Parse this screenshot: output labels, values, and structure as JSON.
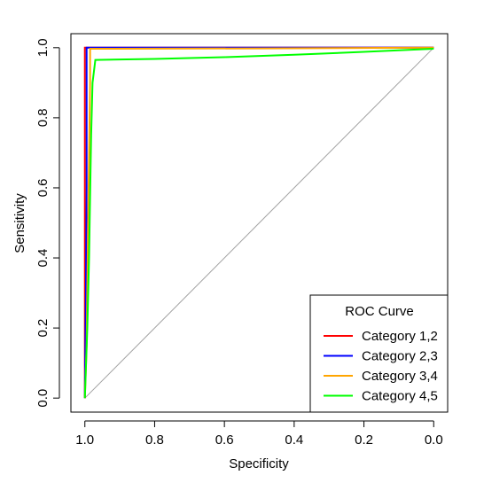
{
  "chart_data": {
    "type": "line",
    "title": "",
    "xlabel": "Specificity",
    "ylabel": "Sensitivity",
    "xlim": [
      1.04,
      -0.04
    ],
    "ylim": [
      -0.04,
      1.04
    ],
    "x_reversed": true,
    "x_ticks": [
      1.0,
      0.8,
      0.6,
      0.4,
      0.2,
      0.0
    ],
    "x_tick_labels": [
      "1.0",
      "0.8",
      "0.6",
      "0.4",
      "0.2",
      "0.0"
    ],
    "y_ticks": [
      0.0,
      0.2,
      0.4,
      0.6,
      0.8,
      1.0
    ],
    "y_tick_labels": [
      "0.0",
      "0.2",
      "0.4",
      "0.6",
      "0.8",
      "1.0"
    ],
    "grid": false,
    "diagonal_reference": true,
    "legend": {
      "title": "ROC Curve",
      "position": "bottom-right"
    },
    "series": [
      {
        "name": "Category 1,2",
        "color": "#ff0000",
        "x": [
          1.0,
          1.0,
          0.0
        ],
        "y": [
          0.0,
          1.0,
          1.0
        ]
      },
      {
        "name": "Category 2,3",
        "color": "#0000ff",
        "x": [
          1.0,
          0.997,
          0.995,
          0.995,
          0.0
        ],
        "y": [
          0.0,
          0.3,
          0.6,
          1.0,
          1.0
        ]
      },
      {
        "name": "Category 3,4",
        "color": "#ffa500",
        "x": [
          1.0,
          0.995,
          0.99,
          0.985,
          0.985,
          0.5,
          0.0
        ],
        "y": [
          0.0,
          0.15,
          0.55,
          0.9,
          0.997,
          0.998,
          1.0
        ]
      },
      {
        "name": "Category 4,5",
        "color": "#00ff00",
        "x": [
          1.0,
          0.993,
          0.988,
          0.982,
          0.978,
          0.97,
          0.8,
          0.6,
          0.4,
          0.2,
          0.0
        ],
        "y": [
          0.0,
          0.2,
          0.4,
          0.75,
          0.9,
          0.965,
          0.968,
          0.973,
          0.98,
          0.988,
          0.997
        ]
      }
    ]
  }
}
